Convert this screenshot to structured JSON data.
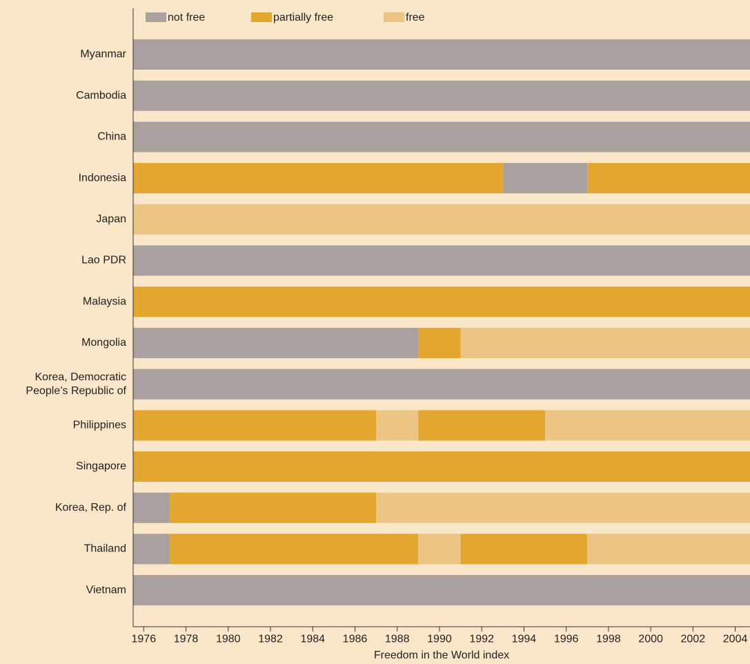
{
  "chart_data": {
    "type": "timeline",
    "xlabel": "Freedom in the World index",
    "xlim": [
      1975.5,
      2004.7
    ],
    "xticks": [
      1976,
      1978,
      1980,
      1982,
      1984,
      1986,
      1988,
      1990,
      1992,
      1994,
      1996,
      1998,
      2000,
      2002,
      2004
    ],
    "series": [
      {
        "name": "not free",
        "color": "#a9a19f"
      },
      {
        "name": "partially free",
        "color": "#e3a62f"
      },
      {
        "name": "free",
        "color": "#ecc585"
      }
    ],
    "rows": [
      {
        "category": "Myanmar",
        "segments": [
          {
            "from": 1975.5,
            "to": 2004.7,
            "status": "not free"
          }
        ]
      },
      {
        "category": "Cambodia",
        "segments": [
          {
            "from": 1975.5,
            "to": 2004.7,
            "status": "not free"
          }
        ]
      },
      {
        "category": "China",
        "segments": [
          {
            "from": 1975.5,
            "to": 2004.7,
            "status": "not free"
          }
        ]
      },
      {
        "category": "Indonesia",
        "segments": [
          {
            "from": 1975.5,
            "to": 1993,
            "status": "partially free"
          },
          {
            "from": 1993,
            "to": 1997,
            "status": "not free"
          },
          {
            "from": 1997,
            "to": 2004.7,
            "status": "partially free"
          }
        ]
      },
      {
        "category": "Japan",
        "segments": [
          {
            "from": 1975.5,
            "to": 2004.7,
            "status": "free"
          }
        ]
      },
      {
        "category": "Lao PDR",
        "segments": [
          {
            "from": 1975.5,
            "to": 2004.7,
            "status": "not free"
          }
        ]
      },
      {
        "category": "Malaysia",
        "segments": [
          {
            "from": 1975.5,
            "to": 2004.7,
            "status": "partially free"
          }
        ]
      },
      {
        "category": "Mongolia",
        "segments": [
          {
            "from": 1975.5,
            "to": 1989,
            "status": "not free"
          },
          {
            "from": 1989,
            "to": 1991,
            "status": "partially free"
          },
          {
            "from": 1991,
            "to": 2004.7,
            "status": "free"
          }
        ]
      },
      {
        "category": [
          "Korea, Democratic",
          "People’s Republic of"
        ],
        "segments": [
          {
            "from": 1975.5,
            "to": 2004.7,
            "status": "not free"
          }
        ]
      },
      {
        "category": "Philippines",
        "segments": [
          {
            "from": 1975.5,
            "to": 1987,
            "status": "partially free"
          },
          {
            "from": 1987,
            "to": 1989,
            "status": "free"
          },
          {
            "from": 1989,
            "to": 1995,
            "status": "partially free"
          },
          {
            "from": 1995,
            "to": 2004.7,
            "status": "free"
          }
        ]
      },
      {
        "category": "Singapore",
        "segments": [
          {
            "from": 1975.5,
            "to": 2004.7,
            "status": "partially free"
          }
        ]
      },
      {
        "category": "Korea, Rep. of",
        "segments": [
          {
            "from": 1975.5,
            "to": 1977.2,
            "status": "not free"
          },
          {
            "from": 1977.2,
            "to": 1987,
            "status": "partially free"
          },
          {
            "from": 1987,
            "to": 2004.7,
            "status": "free"
          }
        ]
      },
      {
        "category": "Thailand",
        "segments": [
          {
            "from": 1975.5,
            "to": 1977.2,
            "status": "not free"
          },
          {
            "from": 1977.2,
            "to": 1989,
            "status": "partially free"
          },
          {
            "from": 1989,
            "to": 1991,
            "status": "free"
          },
          {
            "from": 1991,
            "to": 1997,
            "status": "partially free"
          },
          {
            "from": 1997,
            "to": 2004.7,
            "status": "free"
          }
        ]
      },
      {
        "category": "Vietnam",
        "segments": [
          {
            "from": 1975.5,
            "to": 2004.7,
            "status": "not free"
          }
        ]
      }
    ]
  }
}
